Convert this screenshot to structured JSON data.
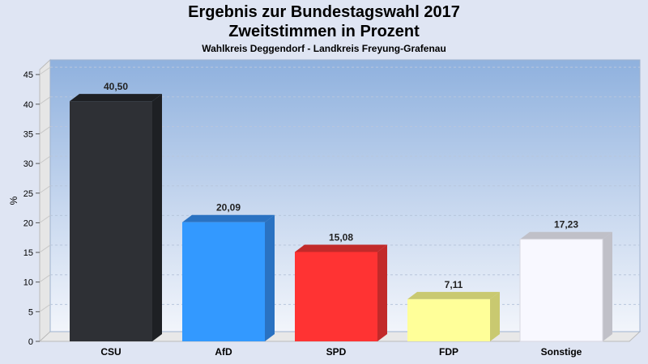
{
  "chart_data": {
    "type": "bar",
    "title": "Ergebnis zur Bundestagswahl 2017",
    "subtitle": "Zweitstimmen in Prozent",
    "subtitle2": "Wahlkreis Deggendorf - Landkreis Freyung-Grafenau",
    "ylabel": "%",
    "ylim": [
      0,
      45
    ],
    "yticks": [
      0,
      5,
      10,
      15,
      20,
      25,
      30,
      35,
      40,
      45
    ],
    "grid": true,
    "categories": [
      "CSU",
      "AfD",
      "SPD",
      "FDP",
      "Sonstige"
    ],
    "values": [
      40.5,
      20.09,
      15.08,
      7.11,
      17.23
    ],
    "value_labels": [
      "40,50",
      "20,09",
      "15,08",
      "7,11",
      "17,23"
    ],
    "colors": [
      "#2e3035",
      "#3399ff",
      "#ff3333",
      "#ffff99",
      "#f8f8ff"
    ],
    "side_colors": [
      "#1e2024",
      "#2a72c2",
      "#c22a2a",
      "#c9c970",
      "#c0c0c8"
    ]
  }
}
